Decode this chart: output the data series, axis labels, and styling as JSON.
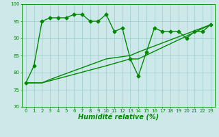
{
  "xlabel": "Humidité relative (%)",
  "background_color": "#cce8e8",
  "grid_color": "#99cccc",
  "line_color": "#008800",
  "ylim": [
    70,
    100
  ],
  "xlim": [
    -0.5,
    23.5
  ],
  "yticks": [
    70,
    75,
    80,
    85,
    90,
    95,
    100
  ],
  "xticks": [
    0,
    1,
    2,
    3,
    4,
    5,
    6,
    7,
    8,
    9,
    10,
    11,
    12,
    13,
    14,
    15,
    16,
    17,
    18,
    19,
    20,
    21,
    22,
    23
  ],
  "series1_x": [
    0,
    1,
    2,
    3,
    4,
    5,
    6,
    7,
    8,
    9,
    10,
    11,
    12,
    13,
    14,
    15,
    16,
    17,
    18,
    19,
    20,
    21,
    22,
    23
  ],
  "series1_y": [
    77,
    82,
    95,
    96,
    96,
    96,
    97,
    97,
    95,
    95,
    97,
    92,
    93,
    84,
    79,
    86,
    93,
    92,
    92,
    92,
    90,
    92,
    92,
    94
  ],
  "series2_x": [
    0,
    2,
    3,
    10,
    13,
    14,
    23
  ],
  "series2_y": [
    77,
    77,
    78,
    84,
    85,
    86,
    94
  ],
  "series3_x": [
    0,
    2,
    10,
    13,
    14,
    23
  ],
  "series3_y": [
    77,
    77,
    82,
    84,
    84,
    94
  ],
  "markersize": 2.5,
  "linewidth": 1.0,
  "xlabel_fontsize": 7,
  "tick_fontsize": 5
}
